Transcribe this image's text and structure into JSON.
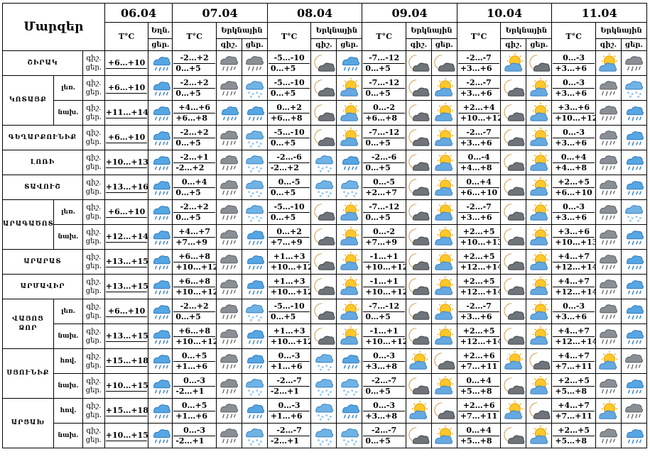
{
  "header": {
    "corner_label": "Մարզեր",
    "dates": [
      "06.04",
      "07.04",
      "08.04",
      "09.04",
      "10.04",
      "11.04"
    ],
    "temp_label": "T°C",
    "sky_label_first": "Եղն.",
    "sky_label": "Երկնային",
    "night_label": "գիշ.",
    "day_label": "ցեր."
  },
  "rows": [
    {
      "region": "ՇԻՐԱԿ",
      "sub": "",
      "tod": [
        "գիշ.",
        "ցեր."
      ],
      "temps": [
        [
          "+6…+10",
          ""
        ],
        [
          "-2…+2",
          "0…+5"
        ],
        [
          "-5…-10",
          "0…+5"
        ],
        [
          "-7…-12",
          "0…+5"
        ],
        [
          "-2…-7",
          "+3…+6"
        ],
        [
          "0…-3",
          "+3…+6"
        ]
      ],
      "icons": [
        "rain",
        "rain-cloud",
        "rain-cloud",
        "night-cloud",
        "rain",
        "night-cloud",
        "night-cloud",
        "sun-cloud",
        "night-cloud",
        "sun-cloud",
        "rain-cloud",
        "rain"
      ]
    },
    {
      "region": "ԿՈՏԱՅՔ",
      "sub": "լեռ.",
      "tod": [
        "գիշ.",
        "ցեր."
      ],
      "temps": [
        [
          "+6…+10",
          ""
        ],
        [
          "-2…+2",
          "0…+5"
        ],
        [
          "-5…-10",
          "0…+5"
        ],
        [
          "-7…-12",
          "0…+5"
        ],
        [
          "-2…-7",
          "+3…+6"
        ],
        [
          "0…-3",
          "+3…+6"
        ]
      ],
      "icons": [
        "rain",
        "rain-cloud",
        "snow",
        "night-cloud",
        "sun-cloud",
        "night-cloud",
        "sun-cloud",
        "night-cloud",
        "sun-cloud",
        "rain-cloud",
        "snow"
      ]
    },
    {
      "region": "",
      "sub": "նախ.",
      "tod": [
        "գիշ.",
        "ցեր."
      ],
      "temps": [
        [
          "+11…+14",
          ""
        ],
        [
          "+4…+6",
          "+6…+8"
        ],
        [
          "0…+2",
          "+6…+8"
        ],
        [
          "0…-2",
          "+6…+8"
        ],
        [
          "+2…+4",
          "+10…+12"
        ],
        [
          "+3…+6",
          "+10…+12"
        ]
      ],
      "icons": [
        "rain",
        "rain",
        "rain",
        "night-cloud",
        "sun-cloud",
        "night-cloud",
        "sun-cloud",
        "night-cloud",
        "sun-cloud",
        "rain-cloud",
        "rain"
      ]
    },
    {
      "region": "ԳԵՂԱՐՔՈՒՆԻՔ",
      "sub": "",
      "tod": [
        "գիշ.",
        "ցեր."
      ],
      "temps": [
        [
          "+6…+10",
          ""
        ],
        [
          "-2…+2",
          "0…+5"
        ],
        [
          "-5…-10",
          "0…+5"
        ],
        [
          "-7…-12",
          "0…+5"
        ],
        [
          "-2…-7",
          "+3…+6"
        ],
        [
          "0…-3",
          "+3…+6"
        ]
      ],
      "icons": [
        "rain",
        "rain-cloud",
        "snow",
        "night-cloud",
        "sun-cloud",
        "night-cloud",
        "sun-cloud",
        "night-cloud",
        "sun-cloud",
        "rain-cloud",
        "rain"
      ]
    },
    {
      "region": "ԼՈՌԻ",
      "sub": "",
      "tod": [
        "գիշ.",
        "ցեր."
      ],
      "temps": [
        [
          "+10…+13",
          ""
        ],
        [
          "-2…+1",
          "-2…+2"
        ],
        [
          "-2…-6",
          "-2…+2"
        ],
        [
          "-2…-6",
          "0…+5"
        ],
        [
          "0…-4",
          "+4…+8"
        ],
        [
          "0…+4",
          "+4…+8"
        ]
      ],
      "icons": [
        "rain",
        "rain-cloud",
        "snow",
        "snow",
        "rain",
        "night-cloud",
        "sun-cloud",
        "night-cloud",
        "sun-cloud",
        "rain-cloud",
        "rain"
      ]
    },
    {
      "region": "ՏԱՎՈՒՇ",
      "sub": "",
      "tod": [
        "գիշ.",
        "ցեր."
      ],
      "temps": [
        [
          "+13…+16",
          ""
        ],
        [
          "0…+4",
          "0…+5"
        ],
        [
          "0…-5",
          "0…+5"
        ],
        [
          "0…-5",
          "+2…+7"
        ],
        [
          "0…+4",
          "+6…+10"
        ],
        [
          "+2…+5",
          "+6…+10"
        ]
      ],
      "icons": [
        "rain",
        "rain-cloud",
        "snow",
        "snow",
        "snow",
        "night-cloud",
        "sun-cloud",
        "night-cloud",
        "sun-cloud",
        "rain-cloud",
        "rain"
      ]
    },
    {
      "region": "ԱՐԱԳԱԾՈՏՆ",
      "sub": "լեռ.",
      "tod": [
        "գիշ.",
        "ցեր."
      ],
      "temps": [
        [
          "+6…+10",
          ""
        ],
        [
          "-2…+2",
          "0…+5"
        ],
        [
          "-5…-10",
          "0…+5"
        ],
        [
          "-7…-12",
          "0…+5"
        ],
        [
          "-2…-7",
          "+3…+6"
        ],
        [
          "0…-3",
          "+3…+6"
        ]
      ],
      "icons": [
        "rain",
        "rain-cloud",
        "snow",
        "night-cloud",
        "sun-cloud",
        "night-cloud",
        "sun-cloud",
        "night-cloud",
        "sun-cloud",
        "rain-cloud",
        "snow"
      ]
    },
    {
      "region": "",
      "sub": "նախ.",
      "tod": [
        "գիշ.",
        "ցեր."
      ],
      "temps": [
        [
          "+12…+14",
          ""
        ],
        [
          "+4…+7",
          "+7…+9"
        ],
        [
          "0…+2",
          "+7…+9"
        ],
        [
          "0…-2",
          "+7…+9"
        ],
        [
          "+2…+5",
          "+10…+13"
        ],
        [
          "+3…+6",
          "+10…+13"
        ]
      ],
      "icons": [
        "rain",
        "rain-cloud",
        "rain",
        "night-cloud",
        "sun-cloud",
        "night-cloud",
        "sun-cloud",
        "night-cloud",
        "sun-cloud",
        "rain-cloud",
        "rain"
      ]
    },
    {
      "region": "ԱՐԱՐԱՏ",
      "sub": "",
      "tod": [
        "գիշ.",
        "ցեր."
      ],
      "temps": [
        [
          "+13…+15",
          ""
        ],
        [
          "+6…+8",
          "+10…+12"
        ],
        [
          "+1…+3",
          "+10…+12"
        ],
        [
          "-1…+1",
          "+10…+12"
        ],
        [
          "+2…+5",
          "+12…+14"
        ],
        [
          "+4…+7",
          "+12…+14"
        ]
      ],
      "icons": [
        "rain",
        "rain-cloud",
        "rain",
        "night-cloud",
        "sun-cloud",
        "night-cloud",
        "sun-cloud",
        "night-cloud",
        "sun-cloud",
        "rain-cloud",
        "rain"
      ]
    },
    {
      "region": "ԱՐՄԱՎԻՐ",
      "sub": "",
      "tod": [
        "գիշ.",
        "ցեր."
      ],
      "temps": [
        [
          "+13…+15",
          ""
        ],
        [
          "+6…+8",
          "+10…+12"
        ],
        [
          "+1…+3",
          "+10…+12"
        ],
        [
          "-1…+1",
          "+10…+12"
        ],
        [
          "+2…+5",
          "+12…+14"
        ],
        [
          "+4…+7",
          "+12…+14"
        ]
      ],
      "icons": [
        "rain",
        "rain-cloud",
        "rain",
        "night-cloud",
        "sun-cloud",
        "night-cloud",
        "sun-cloud",
        "night-cloud",
        "sun-cloud",
        "rain-cloud",
        "rain"
      ]
    },
    {
      "region": "ՎԱՅՈՑ ՁՈՐ",
      "sub": "լեռ.",
      "tod": [
        "գիշ.",
        "ցեր."
      ],
      "temps": [
        [
          "+6…+10",
          ""
        ],
        [
          "-2…+2",
          "0…+5"
        ],
        [
          "-5…-10",
          "0…+5"
        ],
        [
          "-7…-12",
          "0…+5"
        ],
        [
          "-2…-7",
          "+3…+6"
        ],
        [
          "0…-3",
          "+3…+6"
        ]
      ],
      "icons": [
        "rain",
        "rain-cloud",
        "snow",
        "night-cloud",
        "sun-cloud",
        "night-cloud",
        "sun-cloud",
        "night-cloud",
        "sun-cloud",
        "rain-cloud",
        "rain"
      ]
    },
    {
      "region": "",
      "sub": "նախ.",
      "tod": [
        "գիշ.",
        "ցեր."
      ],
      "temps": [
        [
          "+13…+15",
          ""
        ],
        [
          "+6…+8",
          "+10…+12"
        ],
        [
          "+1…+3",
          "+10…+12"
        ],
        [
          "-1…+1",
          "+10…+12"
        ],
        [
          "+2…+5",
          "+12…+14"
        ],
        [
          "+4…+7",
          "+12…+14"
        ]
      ],
      "icons": [
        "rain",
        "rain-cloud",
        "rain",
        "night-cloud",
        "sun-cloud",
        "night-cloud",
        "sun-cloud",
        "night-cloud",
        "sun-cloud",
        "rain-cloud",
        "rain"
      ]
    },
    {
      "region": "ՍՅՈՒՆԻՔ",
      "sub": "հով.",
      "tod": [
        "գիշ.",
        "ցեր."
      ],
      "temps": [
        [
          "+15…+18",
          ""
        ],
        [
          "0…+5",
          "+1…+6"
        ],
        [
          "0…-3",
          "+1…+6"
        ],
        [
          "0…-3",
          "+3…+8"
        ],
        [
          "+2…+6",
          "+7…+11"
        ],
        [
          "+4…+7",
          "+7…+11"
        ]
      ],
      "icons": [
        "rain",
        "rain-cloud",
        "rain",
        "snow",
        "rain",
        "sun-cloud",
        "night-cloud",
        "sun-cloud",
        "night-cloud",
        "sun-cloud",
        "rain-cloud",
        "rain"
      ]
    },
    {
      "region": "",
      "sub": "նախ.",
      "tod": [
        "գիշ.",
        "ցեր."
      ],
      "temps": [
        [
          "+10…+15",
          ""
        ],
        [
          "0…-3",
          "-2…+1"
        ],
        [
          "-2…-7",
          "-2…+1"
        ],
        [
          "-2…-7",
          "0…+5"
        ],
        [
          "0…+4",
          "+5…+8"
        ],
        [
          "+2…+5",
          "+5…+8"
        ]
      ],
      "icons": [
        "rain",
        "rain-cloud",
        "snow",
        "snow",
        "snow",
        "night-cloud",
        "sun-cloud",
        "night-cloud",
        "sun-cloud",
        "rain-cloud",
        "rain"
      ]
    },
    {
      "region": "ԱՐՑԱԽ",
      "sub": "հով.",
      "tod": [
        "գիշ.",
        "ցեր."
      ],
      "temps": [
        [
          "+15…+18",
          ""
        ],
        [
          "0…+5",
          "+1…+6"
        ],
        [
          "0…-3",
          "+1…+6"
        ],
        [
          "0…-3",
          "+3…+8"
        ],
        [
          "+2…+6",
          "+7…+11"
        ],
        [
          "+4…+7",
          "+7…+11"
        ]
      ],
      "icons": [
        "rain",
        "rain-cloud",
        "rain",
        "snow",
        "rain",
        "sun-cloud",
        "night-cloud",
        "sun-cloud",
        "night-cloud",
        "sun-cloud",
        "rain-cloud",
        "rain"
      ]
    },
    {
      "region": "",
      "sub": "նախ.",
      "tod": [
        "գիշ.",
        "ցեր."
      ],
      "temps": [
        [
          "+10…+15",
          ""
        ],
        [
          "0…-3",
          "-2…+1"
        ],
        [
          "-2…-7",
          "-2…+1"
        ],
        [
          "-2…-7",
          "0…+5"
        ],
        [
          "0…+4",
          "+5…+8"
        ],
        [
          "+2…+5",
          "+5…+8"
        ]
      ],
      "icons": [
        "rain",
        "rain-cloud",
        "snow",
        "snow",
        "snow",
        "night-cloud",
        "sun-cloud",
        "night-cloud",
        "sun-cloud",
        "rain-cloud",
        "rain"
      ]
    }
  ]
}
